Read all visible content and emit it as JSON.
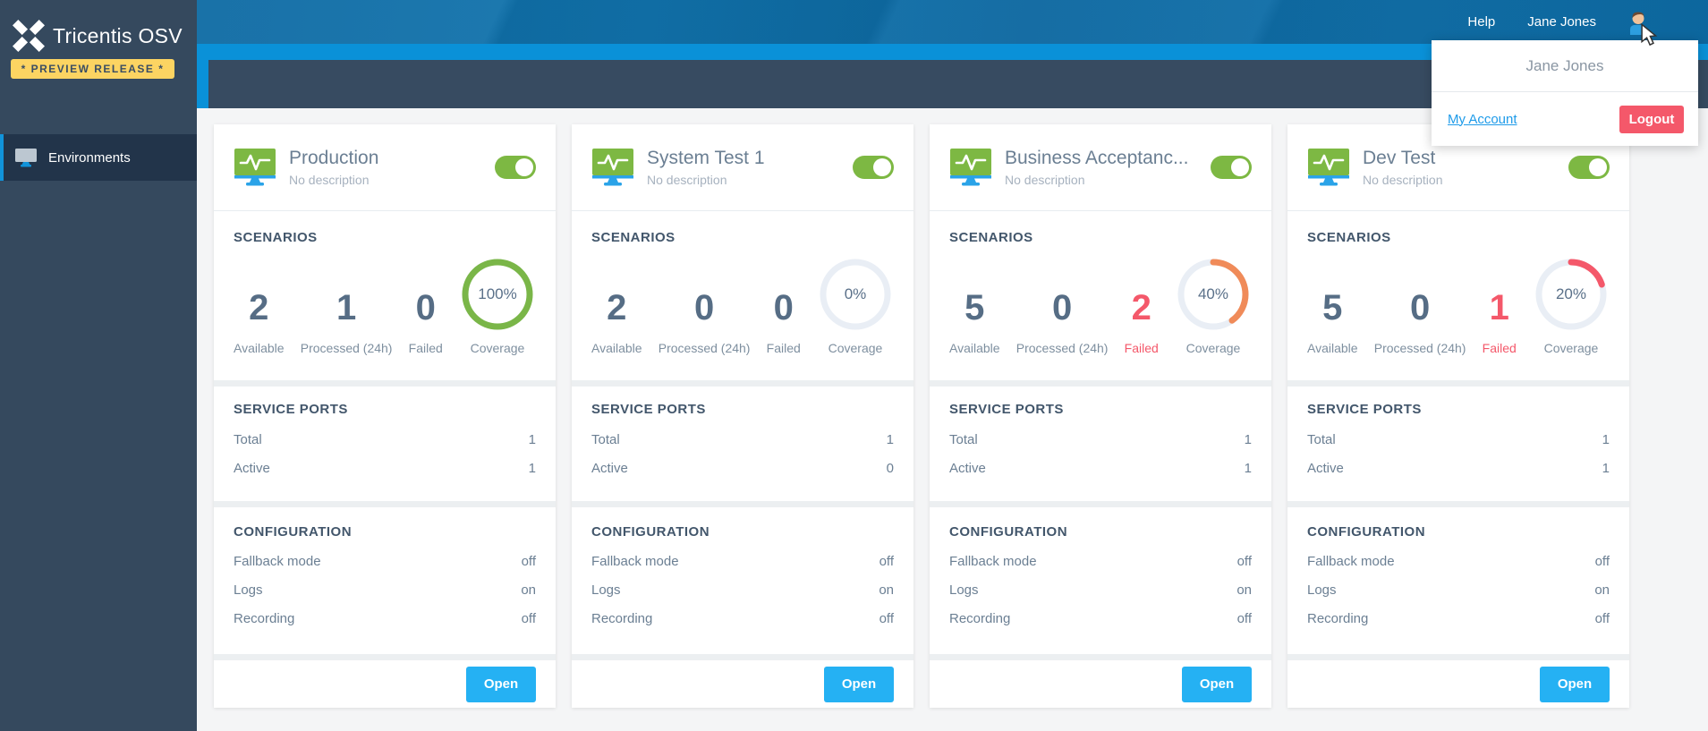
{
  "brand": {
    "name": "Tricentis OSV",
    "badge": "* PREVIEW RELEASE *"
  },
  "sidebar": {
    "items": [
      {
        "label": "Environments"
      }
    ]
  },
  "topbar": {
    "help": "Help",
    "user": "Jane Jones"
  },
  "user_menu": {
    "name": "Jane Jones",
    "account_link": "My Account",
    "logout": "Logout"
  },
  "labels": {
    "scenarios": "SCENARIOS",
    "available": "Available",
    "processed": "Processed (24h)",
    "failed": "Failed",
    "coverage": "Coverage",
    "service_ports": "SERVICE PORTS",
    "total": "Total",
    "active": "Active",
    "configuration": "CONFIGURATION",
    "fallback_mode": "Fallback mode",
    "logs": "Logs",
    "recording": "Recording",
    "open": "Open"
  },
  "colors": {
    "accent_blue": "#1193da",
    "toggle_green": "#7db843",
    "open_button_blue": "#25b1f3",
    "logout_red": "#f4586a",
    "failed_red": "#f4586a",
    "badge_yellow": "#fcd462",
    "ring_track": "#e9eef5",
    "coverage_green": "#7ab648",
    "coverage_orange": "#f08b59",
    "coverage_red": "#f4586a"
  },
  "environments": [
    {
      "name": "Production",
      "description": "No description",
      "enabled": true,
      "available": 2,
      "processed_24h": 1,
      "failed": 0,
      "coverage": 100,
      "coverage_display": "100%",
      "coverage_color": "#7ab648",
      "ports_total": 1,
      "ports_active": 1,
      "fallback_mode": "off",
      "logs": "on",
      "recording": "off"
    },
    {
      "name": "System Test 1",
      "description": "No description",
      "enabled": true,
      "available": 2,
      "processed_24h": 0,
      "failed": 0,
      "coverage": 0,
      "coverage_display": "0%",
      "coverage_color": "#e9eef5",
      "ports_total": 1,
      "ports_active": 0,
      "fallback_mode": "off",
      "logs": "on",
      "recording": "off"
    },
    {
      "name": "Business Acceptanc...",
      "description": "No description",
      "enabled": true,
      "available": 5,
      "processed_24h": 0,
      "failed": 2,
      "coverage": 40,
      "coverage_display": "40%",
      "coverage_color": "#f08b59",
      "ports_total": 1,
      "ports_active": 1,
      "fallback_mode": "off",
      "logs": "on",
      "recording": "off"
    },
    {
      "name": "Dev Test",
      "description": "No description",
      "enabled": true,
      "available": 5,
      "processed_24h": 0,
      "failed": 1,
      "coverage": 20,
      "coverage_display": "20%",
      "coverage_color": "#f4586a",
      "ports_total": 1,
      "ports_active": 1,
      "fallback_mode": "off",
      "logs": "on",
      "recording": "off"
    }
  ]
}
